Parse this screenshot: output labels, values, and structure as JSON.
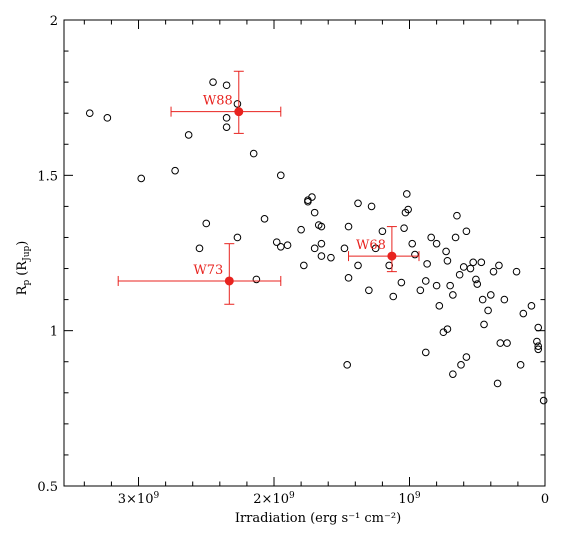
{
  "chart_data": {
    "type": "scatter",
    "title": "",
    "xlabel": "Irradiation (erg s⁻¹ cm⁻²)",
    "ylabel": "R",
    "ylabel_sub": "p",
    "ylabel_unit_open": "(R",
    "ylabel_unit_sub": "Jup",
    "ylabel_unit_close": ")",
    "xlim": [
      3550000000.0,
      0
    ],
    "ylim": [
      0.5,
      2.0
    ],
    "x_reversed": true,
    "grid": false,
    "x_ticks": [
      {
        "value": 3000000000.0,
        "mantissa": "3×10",
        "exp": "9"
      },
      {
        "value": 2000000000.0,
        "mantissa": "2×10",
        "exp": "9"
      },
      {
        "value": 1000000000.0,
        "mantissa": "10",
        "exp": "9"
      },
      {
        "value": 0,
        "mantissa": "0",
        "exp": ""
      }
    ],
    "y_ticks": [
      {
        "value": 0.5,
        "label": "0.5"
      },
      {
        "value": 1.0,
        "label": "1"
      },
      {
        "value": 1.5,
        "label": "1.5"
      },
      {
        "value": 2.0,
        "label": "2"
      }
    ],
    "series": [
      {
        "marker": "open-circle",
        "color": "#000000",
        "points": [
          [
            3360000000.0,
            1.7
          ],
          [
            3230000000.0,
            1.685
          ],
          [
            2980000000.0,
            1.49
          ],
          [
            2730000000.0,
            1.515
          ],
          [
            2630000000.0,
            1.63
          ],
          [
            2450000000.0,
            1.8
          ],
          [
            2350000000.0,
            1.79
          ],
          [
            2270000000.0,
            1.73
          ],
          [
            2350000000.0,
            1.685
          ],
          [
            2350000000.0,
            1.655
          ],
          [
            2150000000.0,
            1.57
          ],
          [
            1950000000.0,
            1.5
          ],
          [
            2070000000.0,
            1.36
          ],
          [
            2500000000.0,
            1.345
          ],
          [
            2270000000.0,
            1.3
          ],
          [
            2550000000.0,
            1.265
          ],
          [
            1980000000.0,
            1.285
          ],
          [
            1950000000.0,
            1.27
          ],
          [
            1900000000.0,
            1.275
          ],
          [
            1800000000.0,
            1.325
          ],
          [
            1750000000.0,
            1.415
          ],
          [
            1750000000.0,
            1.42
          ],
          [
            1720000000.0,
            1.43
          ],
          [
            1700000000.0,
            1.38
          ],
          [
            1670000000.0,
            1.34
          ],
          [
            1650000000.0,
            1.335
          ],
          [
            1700000000.0,
            1.265
          ],
          [
            1650000000.0,
            1.28
          ],
          [
            1650000000.0,
            1.24
          ],
          [
            1780000000.0,
            1.21
          ],
          [
            1580000000.0,
            1.235
          ],
          [
            1480000000.0,
            1.265
          ],
          [
            1450000000.0,
            1.335
          ],
          [
            1380000000.0,
            1.41
          ],
          [
            1280000000.0,
            1.4
          ],
          [
            1200000000.0,
            1.32
          ],
          [
            1250000000.0,
            1.265
          ],
          [
            1380000000.0,
            1.21
          ],
          [
            1450000000.0,
            1.17
          ],
          [
            1300000000.0,
            1.13
          ],
          [
            1150000000.0,
            1.21
          ],
          [
            1120000000.0,
            1.11
          ],
          [
            1060000000.0,
            1.155
          ],
          [
            1040000000.0,
            1.33
          ],
          [
            1030000000.0,
            1.38
          ],
          [
            1010000000.0,
            1.39
          ],
          [
            1020000000.0,
            1.44
          ],
          [
            980000000.0,
            1.28
          ],
          [
            960000000.0,
            1.245
          ],
          [
            920000000.0,
            1.13
          ],
          [
            880000000.0,
            1.16
          ],
          [
            870000000.0,
            1.215
          ],
          [
            840000000.0,
            1.3
          ],
          [
            800000000.0,
            1.28
          ],
          [
            800000000.0,
            1.145
          ],
          [
            780000000.0,
            1.08
          ],
          [
            730000000.0,
            1.255
          ],
          [
            720000000.0,
            1.225
          ],
          [
            700000000.0,
            1.145
          ],
          [
            680000000.0,
            1.115
          ],
          [
            660000000.0,
            1.3
          ],
          [
            650000000.0,
            1.37
          ],
          [
            630000000.0,
            1.18
          ],
          [
            600000000.0,
            1.205
          ],
          [
            580000000.0,
            1.32
          ],
          [
            550000000.0,
            1.2
          ],
          [
            530000000.0,
            1.22
          ],
          [
            510000000.0,
            1.165
          ],
          [
            500000000.0,
            1.15
          ],
          [
            470000000.0,
            1.22
          ],
          [
            460000000.0,
            1.1
          ],
          [
            420000000.0,
            1.065
          ],
          [
            380000000.0,
            1.19
          ],
          [
            400000000.0,
            1.115
          ],
          [
            340000000.0,
            1.21
          ],
          [
            300000000.0,
            1.1
          ],
          [
            210000000.0,
            1.19
          ],
          [
            160000000.0,
            1.055
          ],
          [
            100000000.0,
            1.08
          ],
          [
            50000000.0,
            1.01
          ],
          [
            50000000.0,
            0.95
          ],
          [
            50000000.0,
            0.94
          ],
          [
            60000000.0,
            0.965
          ],
          [
            10000000.0,
            0.775
          ],
          [
            180000000.0,
            0.89
          ],
          [
            280000000.0,
            0.96
          ],
          [
            330000000.0,
            0.96
          ],
          [
            350000000.0,
            0.83
          ],
          [
            450000000.0,
            1.02
          ],
          [
            580000000.0,
            0.915
          ],
          [
            620000000.0,
            0.89
          ],
          [
            680000000.0,
            0.86
          ],
          [
            720000000.0,
            1.005
          ],
          [
            750000000.0,
            0.995
          ],
          [
            880000000.0,
            0.93
          ],
          [
            1460000000.0,
            0.89
          ],
          [
            2130000000.0,
            1.165
          ]
        ]
      },
      {
        "marker": "filled-circle-with-errorbars",
        "color": "#e8231f",
        "points": [
          {
            "label": "W88",
            "x": 2260000000.0,
            "y": 1.705,
            "x_low": 2760000000.0,
            "x_high": 1950000000.0,
            "y_low": 1.635,
            "y_high": 1.835
          },
          {
            "label": "W73",
            "x": 2330000000.0,
            "y": 1.16,
            "x_low": 3150000000.0,
            "x_high": 1950000000.0,
            "y_low": 1.085,
            "y_high": 1.28
          },
          {
            "label": "W68",
            "x": 1130000000.0,
            "y": 1.24,
            "x_low": 1450000000.0,
            "x_high": 930000000.0,
            "y_low": 1.19,
            "y_high": 1.335
          }
        ]
      }
    ]
  }
}
